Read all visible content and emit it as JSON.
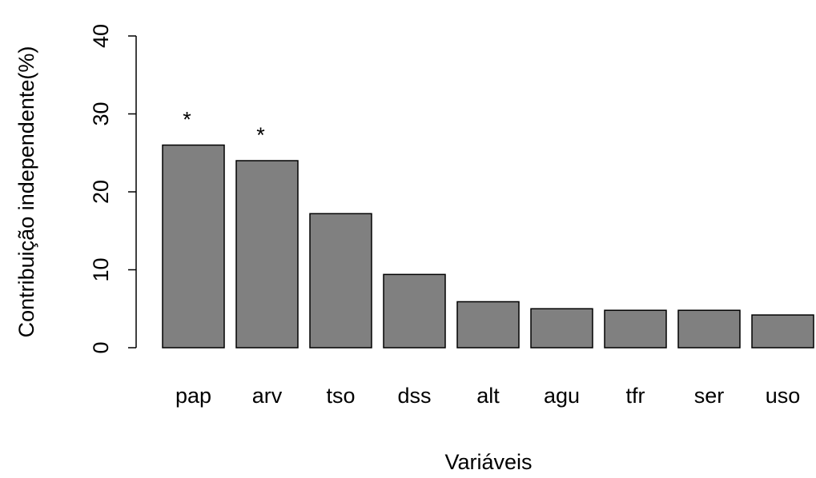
{
  "chart_data": {
    "type": "bar",
    "xlabel": "Variáveis",
    "ylabel": "Contribuição independente(%)",
    "categories": [
      "pap",
      "arv",
      "tso",
      "dss",
      "alt",
      "agu",
      "tfr",
      "ser",
      "uso"
    ],
    "values": [
      26,
      24,
      17.2,
      9.4,
      5.9,
      5.0,
      4.8,
      4.8,
      4.2
    ],
    "color": "#808080",
    "ylim": [
      0,
      40
    ],
    "yticks": [
      0,
      10,
      20,
      30,
      40
    ],
    "annotations": [
      {
        "text": "*",
        "category": "pap"
      },
      {
        "text": "*",
        "category": "arv"
      }
    ]
  }
}
